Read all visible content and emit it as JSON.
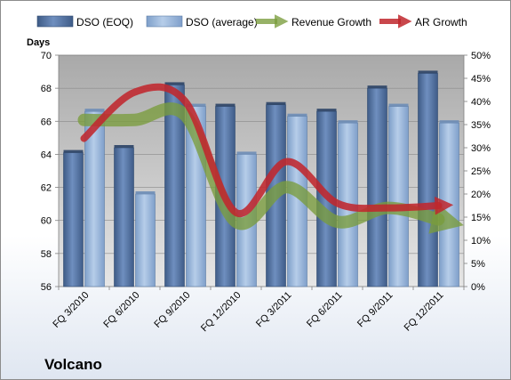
{
  "chart_data": {
    "type": "bar",
    "categories": [
      "FQ 3/2010",
      "FQ 6/2010",
      "FQ 9/2010",
      "FQ 12/2010",
      "FQ 3/2011",
      "FQ 6/2011",
      "FQ 9/2011",
      "FQ 12/2011"
    ],
    "series": [
      {
        "name": "DSO (EOQ)",
        "type": "bar",
        "axis": "left",
        "color": "#4f6e9e",
        "values": [
          64.1,
          64.4,
          68.2,
          66.9,
          67.0,
          66.6,
          68.0,
          68.9
        ]
      },
      {
        "name": "DSO (average)",
        "type": "bar",
        "axis": "left",
        "color": "#95b6dc",
        "values": [
          66.6,
          61.6,
          66.9,
          64.0,
          66.3,
          65.9,
          66.9,
          65.9
        ]
      },
      {
        "name": "Revenue Growth",
        "type": "line",
        "axis": "right",
        "color": "#7a9c3c",
        "values": [
          0.36,
          0.36,
          0.37,
          0.14,
          0.215,
          0.14,
          0.17,
          0.145
        ]
      },
      {
        "name": "AR Growth",
        "type": "line",
        "axis": "right",
        "color": "#c0272d",
        "values": [
          0.32,
          0.42,
          0.4,
          0.16,
          0.27,
          0.18,
          0.17,
          0.175
        ]
      }
    ],
    "ylabel": "Days",
    "ylim": [
      56,
      70
    ],
    "yticks": [
      "56",
      "58",
      "60",
      "62",
      "64",
      "66",
      "68",
      "70"
    ],
    "y2lim": [
      0,
      0.5
    ],
    "y2ticks": [
      "0%",
      "5%",
      "10%",
      "15%",
      "20%",
      "25%",
      "30%",
      "35%",
      "40%",
      "45%",
      "50%"
    ],
    "legend_position": "top",
    "grid": true
  },
  "company": "Volcano"
}
